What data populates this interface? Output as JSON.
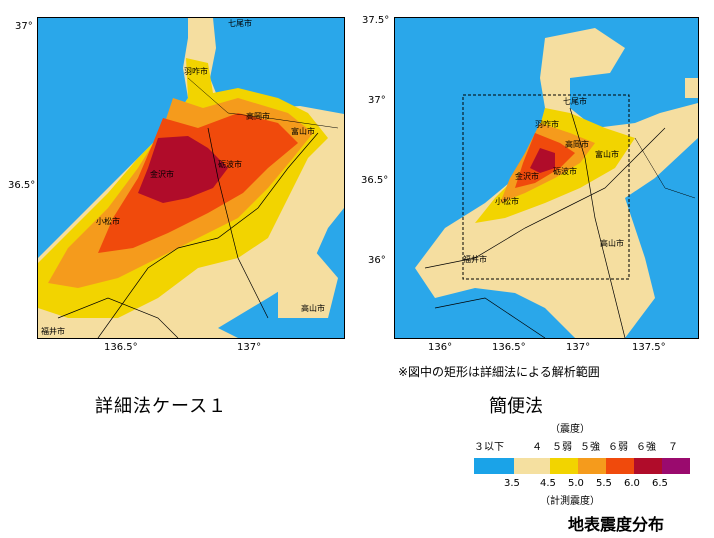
{
  "left_panel": {
    "caption": "詳細法ケース１",
    "lat_ticks": [
      "37°",
      "36.5°"
    ],
    "lon_ticks": [
      "136.5°",
      "137°"
    ],
    "cities": [
      "七尾市",
      "羽咋市",
      "高岡市",
      "富山市",
      "金沢市",
      "砺波市",
      "小松市",
      "高山市",
      "福井市"
    ]
  },
  "right_panel": {
    "caption": "簡便法",
    "lat_ticks": [
      "37.5°",
      "37°",
      "36.5°",
      "36°"
    ],
    "lon_ticks": [
      "136°",
      "136.5°",
      "137°",
      "137.5°"
    ],
    "cities": [
      "七尾市",
      "羽咋市",
      "高岡市",
      "富山市",
      "金沢市",
      "砺波市",
      "小松市",
      "高山市",
      "福井市"
    ],
    "note": "※図中の矩形は詳細法による解析範囲"
  },
  "legend": {
    "top_label": "（震度）",
    "intensity_labels": [
      "３以下",
      "４",
      "５弱",
      "５強",
      "６弱",
      "６強",
      "７"
    ],
    "value_labels": [
      "3.5",
      "4.5",
      "5.0",
      "5.5",
      "6.0",
      "6.5"
    ],
    "bottom_label": "（計測震度）",
    "colors": [
      "#1aa3e8",
      "#f5e0a0",
      "#f2d400",
      "#f59b1c",
      "#f04a0c",
      "#b00c2a",
      "#9a0a6e"
    ]
  },
  "title": "地表震度分布"
}
